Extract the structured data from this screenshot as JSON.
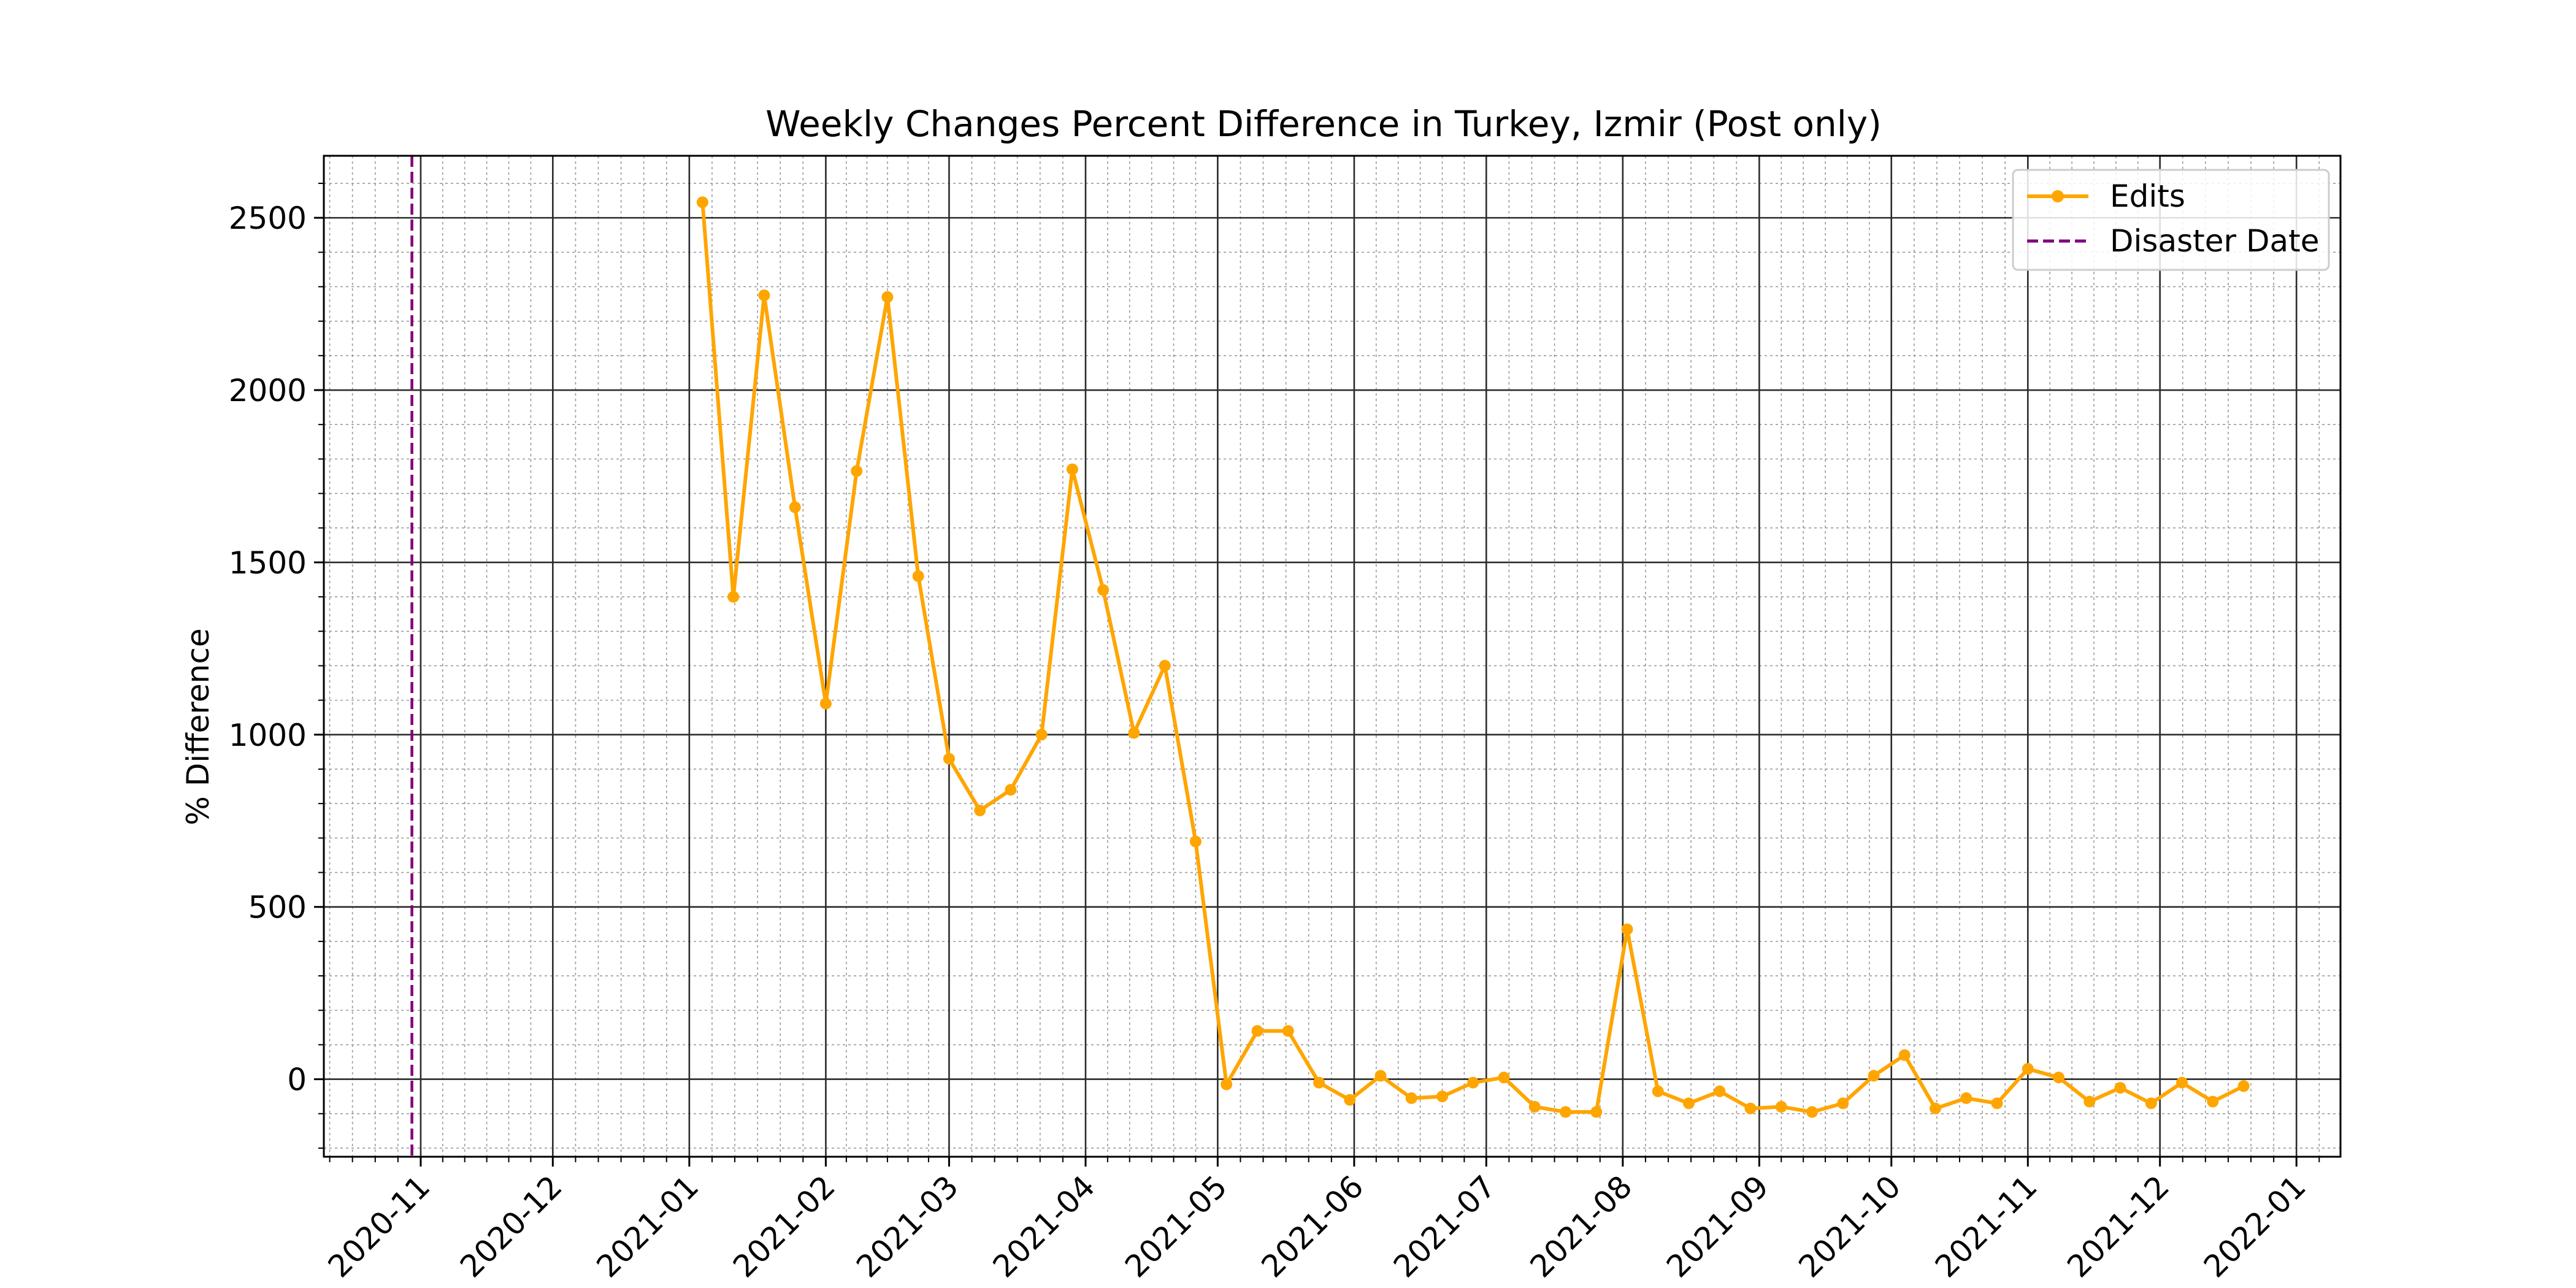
{
  "chart_data": {
    "type": "line",
    "title": "Weekly Changes Percent Difference in Turkey, Izmir (Post only)",
    "xlabel": "",
    "ylabel": "% Difference",
    "x_axis_type": "date",
    "xlim": [
      "2020-10-10",
      "2022-01-11"
    ],
    "ylim": [
      -225,
      2680
    ],
    "x_major_ticks": [
      "2020-11-01",
      "2020-12-01",
      "2021-01-01",
      "2021-02-01",
      "2021-03-01",
      "2021-04-01",
      "2021-05-01",
      "2021-06-01",
      "2021-07-01",
      "2021-08-01",
      "2021-09-01",
      "2021-10-01",
      "2021-11-01",
      "2021-12-01",
      "2022-01-01"
    ],
    "x_tick_labels": [
      "2020-11",
      "2020-12",
      "2021-01",
      "2021-02",
      "2021-03",
      "2021-04",
      "2021-05",
      "2021-06",
      "2021-07",
      "2021-08",
      "2021-09",
      "2021-10",
      "2021-11",
      "2021-12",
      "2022-01"
    ],
    "y_major_ticks": [
      0,
      500,
      1000,
      1500,
      2000,
      2500
    ],
    "y_tick_labels": [
      "0",
      "500",
      "1000",
      "1500",
      "2000",
      "2500"
    ],
    "grid": true,
    "minor_grid": true,
    "legend_position": "top-right",
    "series": [
      {
        "name": "Edits",
        "color": "#FFA500",
        "marker": "circle",
        "x": [
          "2021-01-04",
          "2021-01-11",
          "2021-01-18",
          "2021-01-25",
          "2021-02-01",
          "2021-02-08",
          "2021-02-15",
          "2021-02-22",
          "2021-03-01",
          "2021-03-08",
          "2021-03-15",
          "2021-03-22",
          "2021-03-29",
          "2021-04-05",
          "2021-04-12",
          "2021-04-19",
          "2021-04-26",
          "2021-05-03",
          "2021-05-10",
          "2021-05-17",
          "2021-05-24",
          "2021-05-31",
          "2021-06-07",
          "2021-06-14",
          "2021-06-21",
          "2021-06-28",
          "2021-07-05",
          "2021-07-12",
          "2021-07-19",
          "2021-07-26",
          "2021-08-02",
          "2021-08-09",
          "2021-08-16",
          "2021-08-23",
          "2021-08-30",
          "2021-09-06",
          "2021-09-13",
          "2021-09-20",
          "2021-09-27",
          "2021-10-04",
          "2021-10-11",
          "2021-10-18",
          "2021-10-25",
          "2021-11-01",
          "2021-11-08",
          "2021-11-15",
          "2021-11-22",
          "2021-11-29",
          "2021-12-06",
          "2021-12-13",
          "2021-12-20"
        ],
        "y": [
          2545,
          1400,
          2275,
          1660,
          1090,
          1765,
          2270,
          1460,
          930,
          780,
          840,
          1000,
          1770,
          1420,
          1005,
          1200,
          690,
          -15,
          140,
          140,
          -10,
          -60,
          10,
          -55,
          -50,
          -10,
          5,
          -80,
          -95,
          -95,
          435,
          -35,
          -70,
          -35,
          -85,
          -80,
          -95,
          -70,
          10,
          70,
          -85,
          -55,
          -70,
          30,
          5,
          -65,
          -25,
          -70,
          -10,
          -65,
          -20
        ]
      },
      {
        "name": "Disaster Date",
        "color": "#800080",
        "style": "dashed",
        "vertical_line_x": "2020-10-30"
      }
    ]
  }
}
